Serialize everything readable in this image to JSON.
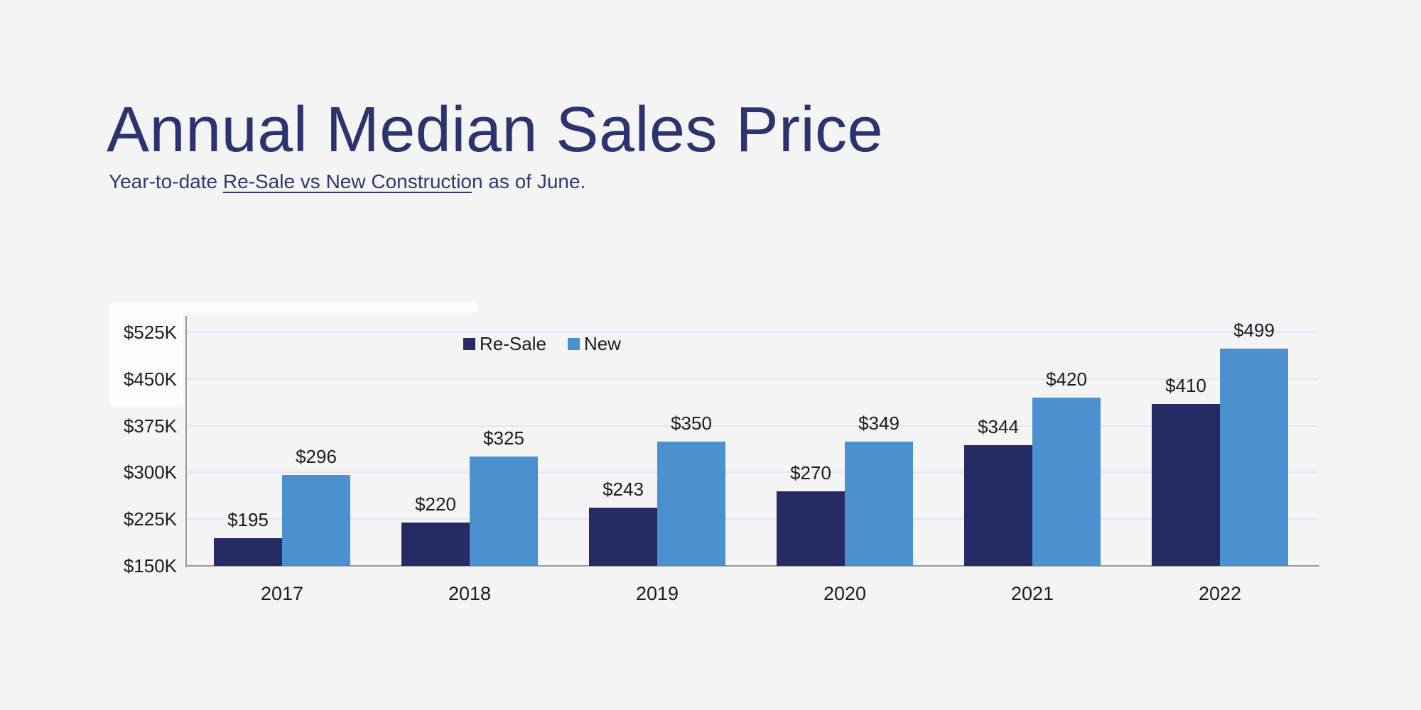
{
  "header": {
    "title": "Annual Median Sales Price",
    "subtitle_prefix": "Year-to-date ",
    "subtitle_underlined": "Re-Sale vs New Constructio",
    "subtitle_suffix": "n as of June."
  },
  "colors": {
    "background": "#f4f4f5",
    "title_text": "#2b346f",
    "subtitle_text": "#2e3a6e",
    "resale_bar": "#262b66",
    "new_bar": "#4b90cf",
    "axis_line": "#9a9aa0",
    "grid_line": "#e2e6f2",
    "tick_text": "#1d1d20"
  },
  "chart_data": {
    "type": "bar",
    "title": "Annual Median Sales Price",
    "subtitle": "Year-to-date Re-Sale vs New Construction as of June.",
    "categories": [
      "2017",
      "2018",
      "2019",
      "2020",
      "2021",
      "2022"
    ],
    "series": [
      {
        "name": "Re-Sale",
        "color": "#262b66",
        "values": [
          195,
          220,
          243,
          270,
          344,
          410
        ],
        "labels": [
          "$195",
          "$220",
          "$243",
          "$270",
          "$344",
          "$410"
        ]
      },
      {
        "name": "New",
        "color": "#4b90cf",
        "values": [
          296,
          325,
          350,
          349,
          420,
          499
        ],
        "labels": [
          "$296",
          "$325",
          "$350",
          "$349",
          "$420",
          "$499"
        ]
      }
    ],
    "value_unit": "thousand USD",
    "ylim": [
      150,
      525
    ],
    "yticks": [
      525,
      450,
      375,
      300,
      225,
      150
    ],
    "ytick_labels": [
      "$525K",
      "$450K",
      "$375K",
      "$300K",
      "$225K",
      "$150K"
    ],
    "xlabel": "",
    "ylabel": "",
    "grid": true,
    "legend_position": "top-center-left"
  }
}
